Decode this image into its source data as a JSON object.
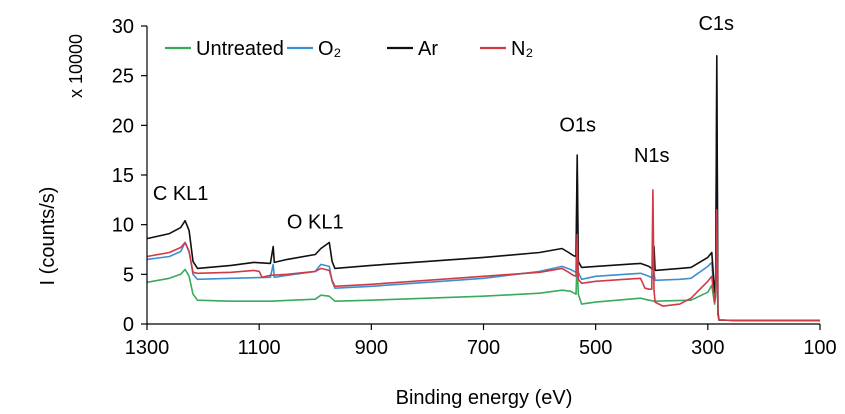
{
  "chart_data": {
    "type": "line",
    "title": "",
    "xlabel": "Binding energy (eV)",
    "ylabel": "I (counts/s)",
    "y_multiplier_label": "x 10000",
    "xlim": [
      1300,
      100
    ],
    "x_reversed": true,
    "ylim": [
      0,
      30
    ],
    "xticks": [
      1300,
      1100,
      900,
      700,
      500,
      300,
      100
    ],
    "yticks": [
      0,
      5,
      10,
      15,
      20,
      25,
      30
    ],
    "grid": false,
    "legend_position": "top-left",
    "annotations": [
      {
        "text": "C KL1",
        "x": 1240,
        "y": 12.5
      },
      {
        "text": "O KL1",
        "x": 1000,
        "y": 9.6
      },
      {
        "text": "O1s",
        "x": 532,
        "y": 19.4
      },
      {
        "text": "N1s",
        "x": 400,
        "y": 16.3
      },
      {
        "text": "C1s",
        "x": 285,
        "y": 29.6
      }
    ],
    "series": [
      {
        "name": "Untreated",
        "color": "#3aaa5c",
        "points": [
          [
            1300,
            4.2
          ],
          [
            1260,
            4.6
          ],
          [
            1240,
            5.0
          ],
          [
            1232,
            5.5
          ],
          [
            1225,
            4.8
          ],
          [
            1218,
            3.0
          ],
          [
            1210,
            2.4
          ],
          [
            1150,
            2.3
          ],
          [
            1080,
            2.3
          ],
          [
            1000,
            2.5
          ],
          [
            990,
            2.9
          ],
          [
            975,
            2.8
          ],
          [
            965,
            2.3
          ],
          [
            900,
            2.4
          ],
          [
            800,
            2.6
          ],
          [
            700,
            2.8
          ],
          [
            600,
            3.1
          ],
          [
            560,
            3.4
          ],
          [
            545,
            3.3
          ],
          [
            535,
            3.0
          ],
          [
            533,
            6.5
          ],
          [
            531,
            3.0
          ],
          [
            525,
            2.0
          ],
          [
            500,
            2.2
          ],
          [
            420,
            2.6
          ],
          [
            405,
            2.4
          ],
          [
            395,
            2.3
          ],
          [
            330,
            2.4
          ],
          [
            300,
            3.2
          ],
          [
            293,
            3.9
          ],
          [
            288,
            2.0
          ],
          [
            286,
            2.8
          ],
          [
            284,
            12.0
          ],
          [
            282,
            1.0
          ],
          [
            280,
            0.4
          ],
          [
            250,
            0.35
          ],
          [
            200,
            0.35
          ],
          [
            100,
            0.35
          ]
        ]
      },
      {
        "name": "O₂",
        "color": "#3d8fd0",
        "points": [
          [
            1300,
            6.5
          ],
          [
            1260,
            6.8
          ],
          [
            1240,
            7.3
          ],
          [
            1232,
            8.2
          ],
          [
            1225,
            7.3
          ],
          [
            1218,
            5.0
          ],
          [
            1210,
            4.5
          ],
          [
            1150,
            4.6
          ],
          [
            1080,
            4.7
          ],
          [
            1075,
            6.0
          ],
          [
            1073,
            4.7
          ],
          [
            1050,
            4.9
          ],
          [
            1000,
            5.3
          ],
          [
            990,
            6.0
          ],
          [
            975,
            5.8
          ],
          [
            970,
            4.3
          ],
          [
            965,
            3.6
          ],
          [
            900,
            3.8
          ],
          [
            800,
            4.2
          ],
          [
            700,
            4.6
          ],
          [
            600,
            5.3
          ],
          [
            560,
            5.8
          ],
          [
            545,
            5.5
          ],
          [
            535,
            5.2
          ],
          [
            533,
            15.5
          ],
          [
            531,
            5.2
          ],
          [
            525,
            4.5
          ],
          [
            500,
            4.8
          ],
          [
            420,
            5.1
          ],
          [
            405,
            4.8
          ],
          [
            398,
            4.6
          ],
          [
            396,
            5.2
          ],
          [
            394,
            4.4
          ],
          [
            350,
            4.5
          ],
          [
            330,
            4.6
          ],
          [
            300,
            5.8
          ],
          [
            293,
            6.2
          ],
          [
            288,
            2.4
          ],
          [
            286,
            3.5
          ],
          [
            284,
            24.5
          ],
          [
            282,
            1.0
          ],
          [
            280,
            0.4
          ],
          [
            250,
            0.35
          ],
          [
            200,
            0.35
          ],
          [
            100,
            0.35
          ]
        ]
      },
      {
        "name": "Ar",
        "color": "#111111",
        "points": [
          [
            1300,
            8.6
          ],
          [
            1260,
            9.1
          ],
          [
            1240,
            9.7
          ],
          [
            1232,
            10.4
          ],
          [
            1225,
            9.4
          ],
          [
            1218,
            6.3
          ],
          [
            1210,
            5.6
          ],
          [
            1150,
            5.9
          ],
          [
            1110,
            6.2
          ],
          [
            1080,
            6.1
          ],
          [
            1075,
            7.8
          ],
          [
            1073,
            6.2
          ],
          [
            1050,
            6.5
          ],
          [
            1000,
            7.0
          ],
          [
            990,
            7.6
          ],
          [
            975,
            8.2
          ],
          [
            970,
            6.3
          ],
          [
            965,
            5.6
          ],
          [
            900,
            5.9
          ],
          [
            800,
            6.3
          ],
          [
            700,
            6.7
          ],
          [
            600,
            7.2
          ],
          [
            560,
            7.6
          ],
          [
            548,
            7.2
          ],
          [
            540,
            6.9
          ],
          [
            535,
            6.8
          ],
          [
            533,
            17.0
          ],
          [
            531,
            6.3
          ],
          [
            525,
            5.7
          ],
          [
            500,
            5.8
          ],
          [
            420,
            6.1
          ],
          [
            405,
            5.8
          ],
          [
            398,
            5.5
          ],
          [
            396,
            7.8
          ],
          [
            394,
            5.4
          ],
          [
            350,
            5.6
          ],
          [
            330,
            5.7
          ],
          [
            300,
            6.7
          ],
          [
            293,
            7.2
          ],
          [
            288,
            3.2
          ],
          [
            286,
            4.5
          ],
          [
            284,
            27.0
          ],
          [
            282,
            1.2
          ],
          [
            280,
            0.4
          ],
          [
            250,
            0.35
          ],
          [
            200,
            0.35
          ],
          [
            100,
            0.35
          ]
        ]
      },
      {
        "name": "N₂",
        "color": "#d03a45",
        "points": [
          [
            1300,
            6.8
          ],
          [
            1260,
            7.2
          ],
          [
            1240,
            7.7
          ],
          [
            1232,
            8.2
          ],
          [
            1225,
            7.3
          ],
          [
            1218,
            5.2
          ],
          [
            1210,
            5.1
          ],
          [
            1150,
            5.2
          ],
          [
            1110,
            5.4
          ],
          [
            1100,
            5.3
          ],
          [
            1095,
            4.7
          ],
          [
            1080,
            4.9
          ],
          [
            1050,
            5.0
          ],
          [
            1000,
            5.3
          ],
          [
            990,
            5.6
          ],
          [
            975,
            5.4
          ],
          [
            970,
            4.4
          ],
          [
            965,
            3.8
          ],
          [
            900,
            4.0
          ],
          [
            800,
            4.4
          ],
          [
            700,
            4.8
          ],
          [
            600,
            5.2
          ],
          [
            560,
            5.6
          ],
          [
            548,
            5.2
          ],
          [
            540,
            4.9
          ],
          [
            535,
            4.8
          ],
          [
            533,
            9.0
          ],
          [
            531,
            4.5
          ],
          [
            525,
            4.1
          ],
          [
            500,
            4.3
          ],
          [
            420,
            4.6
          ],
          [
            412,
            3.6
          ],
          [
            405,
            3.5
          ],
          [
            400,
            3.5
          ],
          [
            398,
            13.5
          ],
          [
            396,
            3.4
          ],
          [
            394,
            2.2
          ],
          [
            380,
            1.8
          ],
          [
            350,
            2.0
          ],
          [
            330,
            2.6
          ],
          [
            300,
            4.3
          ],
          [
            293,
            4.8
          ],
          [
            288,
            2.2
          ],
          [
            286,
            3.2
          ],
          [
            284,
            11.5
          ],
          [
            282,
            1.0
          ],
          [
            280,
            0.4
          ],
          [
            250,
            0.35
          ],
          [
            200,
            0.35
          ],
          [
            100,
            0.35
          ]
        ]
      }
    ]
  }
}
